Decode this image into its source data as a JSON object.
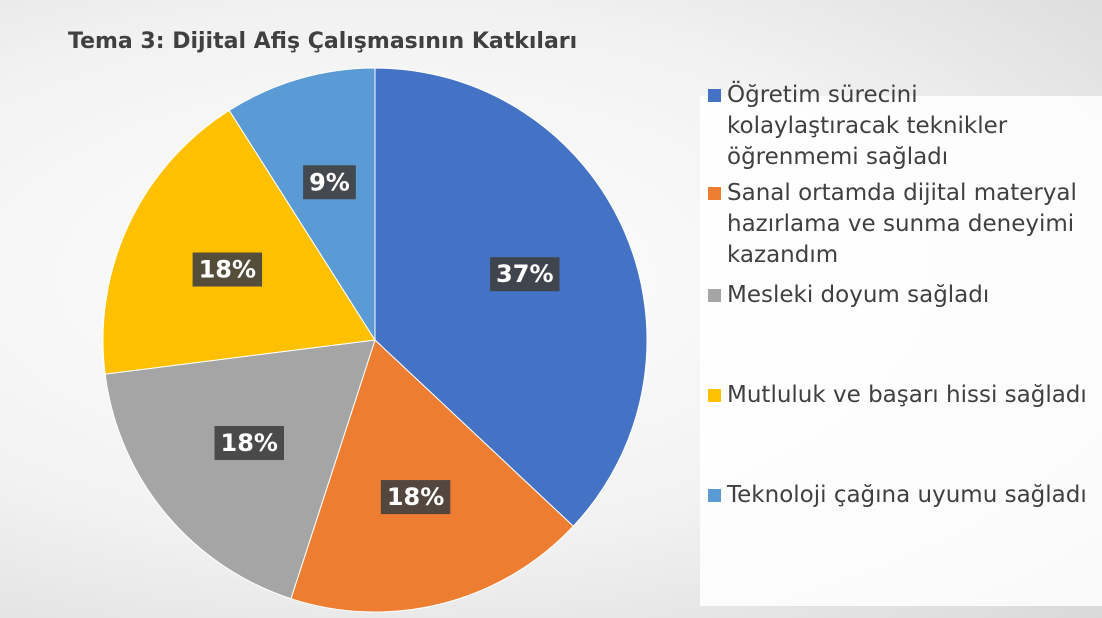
{
  "chart_data": {
    "type": "pie",
    "title": "Tema 3: Dijital Afiş Çalışmasının Katkıları",
    "categories": [
      "Öğretim sürecini kolaylaştıracak teknikler öğrenmemi sağladı",
      "Sanal ortamda dijital materyal hazırlama ve sunma deneyimi kazandım",
      "Mesleki doyum sağladı",
      "Mutluluk ve başarı hissi sağladı",
      "Teknoloji çağına uyumu sağladı"
    ],
    "values": [
      37,
      18,
      18,
      18,
      9
    ],
    "value_labels": [
      "37%",
      "18%",
      "18%",
      "18%",
      "9%"
    ],
    "colors": [
      "#4472c4",
      "#ed7d31",
      "#a5a5a5",
      "#ffc000",
      "#5b9bd5"
    ],
    "legend": "right"
  }
}
